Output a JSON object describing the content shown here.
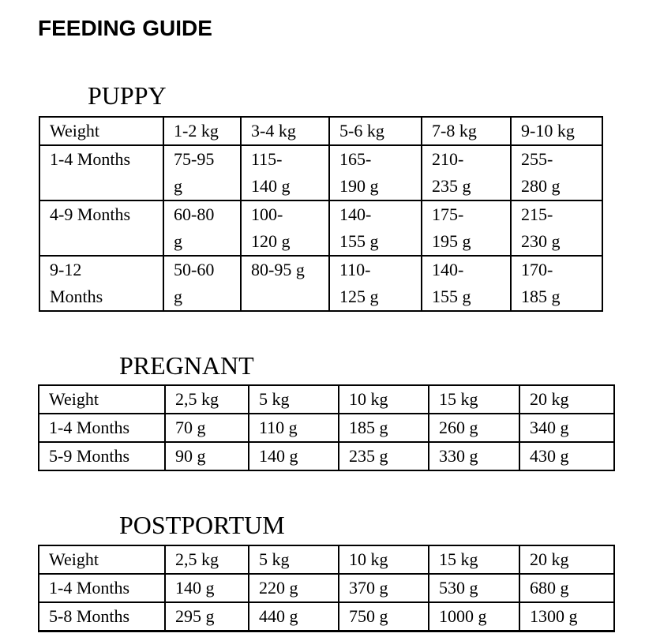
{
  "page": {
    "title": "FEEDING GUIDE"
  },
  "colors": {
    "background": "#ffffff",
    "text": "#000000",
    "table_border": "#000000"
  },
  "sections": [
    {
      "heading": "PUPPY",
      "table": {
        "columns": [
          "Weight",
          "1-2 kg",
          "3-4 kg",
          "5-6 kg",
          "7-8 kg",
          "9-10 kg"
        ],
        "rows": [
          {
            "label": "1-4 Months",
            "values": [
              "75-95\ng",
              "115-\n140 g",
              "165-\n190 g",
              "210-\n235 g",
              "255-\n280 g"
            ]
          },
          {
            "label": "4-9 Months",
            "values": [
              "60-80\ng",
              "100-\n120 g",
              "140-\n155 g",
              "175-\n195 g",
              "215-\n230 g"
            ]
          },
          {
            "label": "9-12\nMonths",
            "values": [
              "50-60\ng",
              "80-95 g",
              "110-\n125 g",
              "140-\n155 g",
              "170-\n185 g"
            ]
          }
        ]
      }
    },
    {
      "heading": "PREGNANT",
      "table": {
        "columns": [
          "Weight",
          "2,5 kg",
          "5 kg",
          "10 kg",
          "15 kg",
          "20 kg"
        ],
        "rows": [
          {
            "label": "1-4 Months",
            "values": [
              "70 g",
              "110 g",
              "185 g",
              "260 g",
              "340 g"
            ]
          },
          {
            "label": "5-9 Months",
            "values": [
              "90 g",
              "140 g",
              "235 g",
              "330 g",
              "430 g"
            ]
          }
        ]
      }
    },
    {
      "heading": "POSTPORTUM",
      "table": {
        "columns": [
          "Weight",
          "2,5 kg",
          "5 kg",
          "10 kg",
          "15 kg",
          "20 kg"
        ],
        "rows": [
          {
            "label": "1-4 Months",
            "values": [
              "140 g",
              "220 g",
              "370 g",
              "530 g",
              "680 g"
            ]
          },
          {
            "label": "5-8 Months",
            "values": [
              "295 g",
              "440 g",
              "750 g",
              "1000 g",
              "1300 g"
            ]
          }
        ]
      }
    }
  ]
}
